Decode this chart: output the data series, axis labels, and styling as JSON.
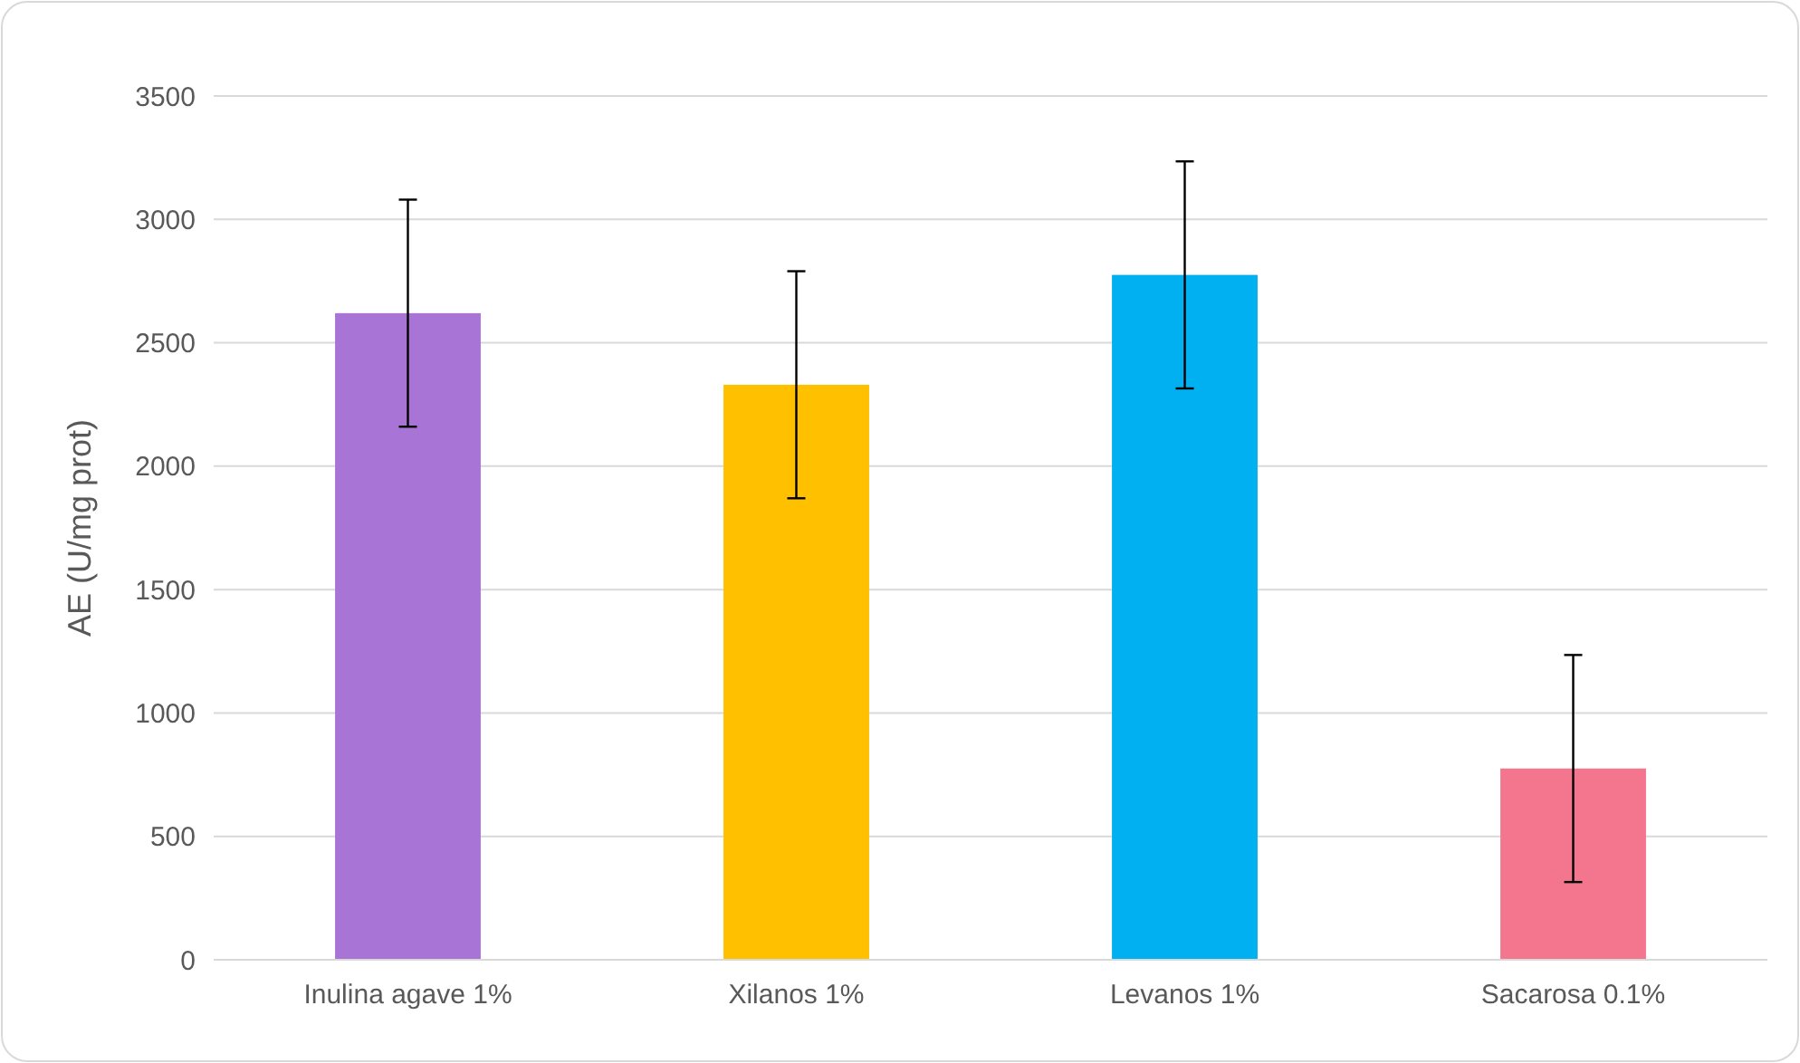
{
  "chart_data": {
    "type": "bar",
    "ylabel": "AE (U/mg prot)",
    "categories": [
      "Inulina agave 1%",
      "Xilanos 1%",
      "Levanos 1%",
      "Sacarosa 0.1%"
    ],
    "values": [
      2620,
      2330,
      2775,
      775
    ],
    "colors": [
      "#a875d6",
      "#ffc000",
      "#00b0f0",
      "#f4768e"
    ],
    "errors": [
      460,
      460,
      460,
      460
    ],
    "ylim": [
      0,
      3500
    ],
    "yticks": [
      0,
      500,
      1000,
      1500,
      2000,
      2500,
      3000,
      3500
    ],
    "grid": "y"
  }
}
